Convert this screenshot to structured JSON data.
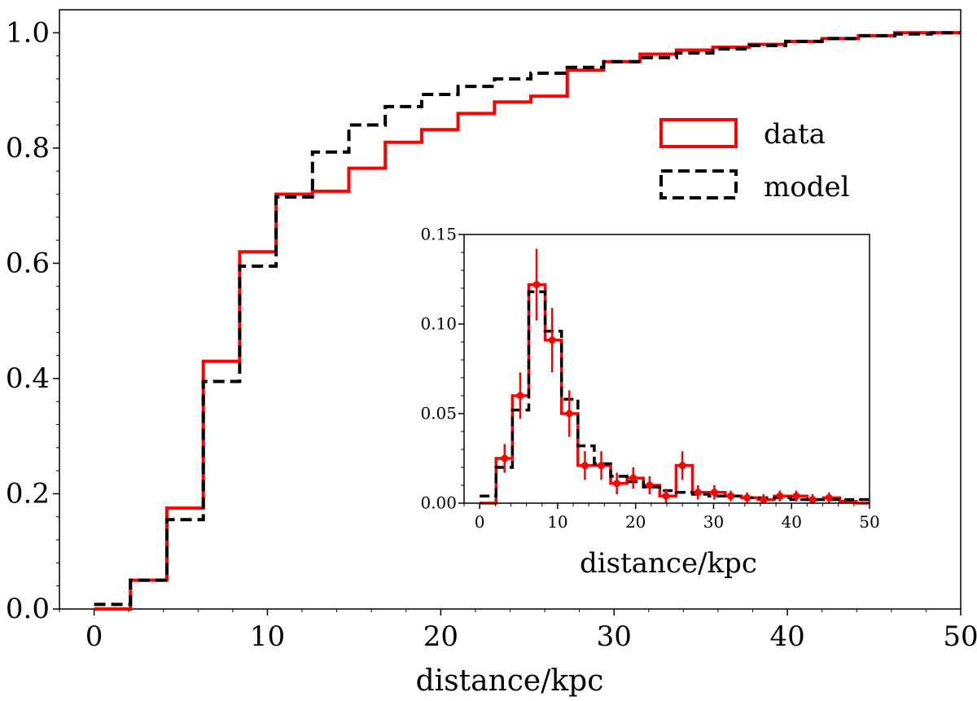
{
  "chart_data": [
    {
      "id": "main",
      "type": "step",
      "title": "",
      "xlabel": "distance/kpc",
      "ylabel": "",
      "xlim": [
        -2,
        50
      ],
      "ylim": [
        0,
        1.04
      ],
      "xticks": [
        0,
        10,
        20,
        30,
        40,
        50
      ],
      "yticks": [
        0.0,
        0.2,
        0.4,
        0.6,
        0.8,
        1.0
      ],
      "xtick_labels": [
        "0",
        "10",
        "20",
        "30",
        "40",
        "50"
      ],
      "ytick_labels": [
        "0.0",
        "0.2",
        "0.4",
        "0.6",
        "0.8",
        "1.0"
      ],
      "bin_edges": [
        0,
        2.1,
        4.2,
        6.3,
        8.4,
        10.5,
        12.6,
        14.7,
        16.8,
        18.9,
        21.0,
        23.1,
        25.2,
        27.3,
        29.4,
        31.5,
        33.6,
        35.7,
        37.8,
        39.9,
        42.0,
        44.1,
        46.2,
        48.3,
        50
      ],
      "legend": {
        "position": "upper right, below top",
        "entries": [
          "data",
          "model"
        ]
      },
      "series": [
        {
          "name": "data",
          "color": "#ff0000",
          "style": "solid",
          "values": [
            0.0,
            0.05,
            0.175,
            0.43,
            0.62,
            0.72,
            0.725,
            0.765,
            0.81,
            0.832,
            0.86,
            0.88,
            0.89,
            0.935,
            0.95,
            0.963,
            0.97,
            0.975,
            0.98,
            0.985,
            0.99,
            0.995,
            1.0,
            1.0
          ]
        },
        {
          "name": "model",
          "color": "#000000",
          "style": "dashed",
          "values": [
            0.008,
            0.05,
            0.155,
            0.395,
            0.595,
            0.715,
            0.793,
            0.84,
            0.872,
            0.893,
            0.907,
            0.92,
            0.93,
            0.94,
            0.95,
            0.957,
            0.965,
            0.972,
            0.978,
            0.985,
            0.99,
            0.995,
            0.998,
            1.0
          ]
        }
      ]
    },
    {
      "id": "inset",
      "type": "step",
      "title": "",
      "xlabel": "distance/kpc",
      "ylabel": "",
      "xlim": [
        -2,
        50
      ],
      "ylim": [
        0,
        0.15
      ],
      "xticks": [
        0,
        10,
        20,
        30,
        40,
        50
      ],
      "yticks": [
        0.0,
        0.05,
        0.1,
        0.15
      ],
      "xtick_labels": [
        "0",
        "10",
        "20",
        "30",
        "40",
        "50"
      ],
      "ytick_labels": [
        "0.00",
        "0.05",
        "0.10",
        "0.15"
      ],
      "bin_edges": [
        0,
        1.05,
        2.1,
        3.15,
        4.2,
        5.25,
        6.3,
        7.35,
        8.4,
        9.45,
        10.5,
        11.55,
        12.6,
        13.65,
        14.7,
        15.75,
        16.8,
        17.85,
        18.9,
        19.95,
        21.0,
        22.05,
        23.1,
        24.15,
        25.2,
        26.25,
        27.3,
        28.35,
        29.4,
        30.45,
        31.5,
        32.55,
        33.6,
        34.65,
        35.7,
        36.75,
        37.8,
        38.85,
        39.9,
        40.95,
        42.0,
        43.05,
        44.1,
        45.15,
        46.2,
        47.25,
        48.3,
        49.35,
        50
      ],
      "series": [
        {
          "name": "data",
          "color": "#ff0000",
          "style": "solid",
          "values": [
            0.0,
            0.0,
            0.025,
            0.025,
            0.06,
            0.06,
            0.122,
            0.122,
            0.091,
            0.091,
            0.05,
            0.05,
            0.021,
            0.021,
            0.021,
            0.021,
            0.011,
            0.011,
            0.014,
            0.014,
            0.01,
            0.01,
            0.004,
            0.004,
            0.021,
            0.021,
            0.006,
            0.006,
            0.006,
            0.006,
            0.004,
            0.004,
            0.003,
            0.003,
            0.002,
            0.002,
            0.004,
            0.004,
            0.004,
            0.004,
            0.002,
            0.002,
            0.003,
            0.003,
            0.001,
            0.001,
            0.0,
            0.0
          ]
        },
        {
          "name": "model",
          "color": "#000000",
          "style": "dashed",
          "values": [
            0.004,
            0.004,
            0.02,
            0.02,
            0.052,
            0.052,
            0.118,
            0.118,
            0.096,
            0.096,
            0.058,
            0.058,
            0.032,
            0.032,
            0.022,
            0.022,
            0.015,
            0.015,
            0.012,
            0.012,
            0.009,
            0.009,
            0.007,
            0.007,
            0.006,
            0.006,
            0.005,
            0.005,
            0.004,
            0.004,
            0.004,
            0.004,
            0.003,
            0.003,
            0.003,
            0.003,
            0.003,
            0.003,
            0.002,
            0.002,
            0.002,
            0.002,
            0.002,
            0.002,
            0.002,
            0.002,
            0.002,
            0.002
          ]
        }
      ],
      "error_points": {
        "name": "data",
        "x": [
          3.2,
          5.2,
          7.3,
          9.3,
          11.5,
          13.5,
          15.6,
          17.6,
          19.7,
          21.8,
          23.9,
          26.0,
          28.0,
          30.1,
          32.2,
          34.3,
          36.4,
          38.5,
          40.6,
          42.7,
          44.8
        ],
        "y": [
          0.025,
          0.06,
          0.122,
          0.091,
          0.05,
          0.021,
          0.021,
          0.011,
          0.014,
          0.01,
          0.004,
          0.021,
          0.006,
          0.006,
          0.004,
          0.003,
          0.002,
          0.004,
          0.004,
          0.002,
          0.003
        ],
        "err": [
          0.008,
          0.013,
          0.02,
          0.018,
          0.013,
          0.008,
          0.008,
          0.006,
          0.006,
          0.005,
          0.004,
          0.008,
          0.004,
          0.004,
          0.003,
          0.003,
          0.003,
          0.003,
          0.003,
          0.003,
          0.003
        ]
      }
    }
  ]
}
